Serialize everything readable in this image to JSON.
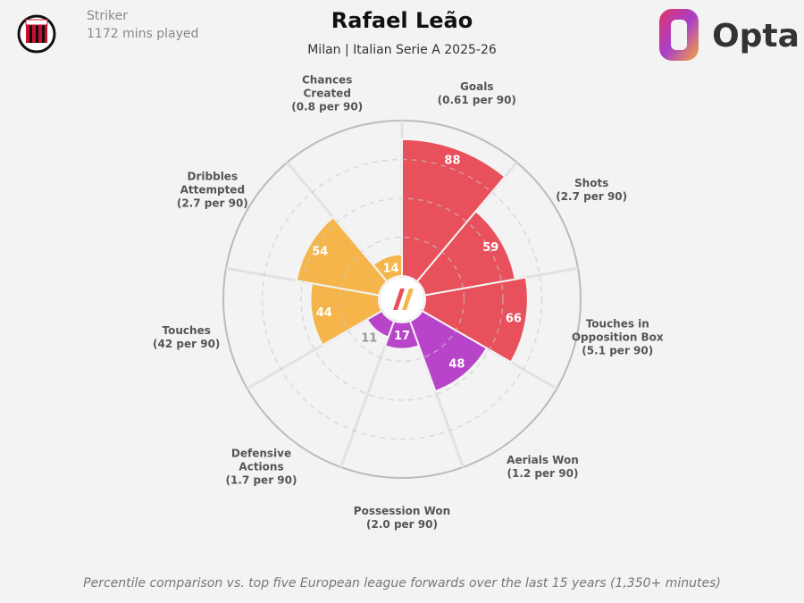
{
  "header": {
    "position": "Striker",
    "minutes": "1172 mins played",
    "brand": "Opta"
  },
  "chart_data": {
    "type": "pizza",
    "title": "Rafael Leão",
    "subtitle": "Milan | Italian Serie A 2025-26",
    "categories": [
      "Goals",
      "Shots",
      "Touches in Opposition Box",
      "Aerials Won",
      "Possession Won",
      "Defensive Actions",
      "Touches",
      "Dribbles Attempted",
      "Chances Created"
    ],
    "category_details": [
      "(0.61 per 90)",
      "(2.7 per 90)",
      "(5.1 per 90)",
      "(1.2 per 90)",
      "(2.0 per 90)",
      "(1.7 per 90)",
      "(42 per 90)",
      "(2.7 per 90)",
      "(0.8 per 90)"
    ],
    "values": [
      88,
      59,
      66,
      48,
      17,
      11,
      44,
      54,
      14
    ],
    "colors": [
      "#e8505b",
      "#e8505b",
      "#e8505b",
      "#b845c9",
      "#b845c9",
      "#b845c9",
      "#f5b54a",
      "#f5b54a",
      "#f5b54a"
    ],
    "ylim": [
      0,
      100
    ],
    "grid": true,
    "footnote": "Percentile comparison vs. top five European league forwards over the last 15 years (1,350+ minutes)"
  }
}
